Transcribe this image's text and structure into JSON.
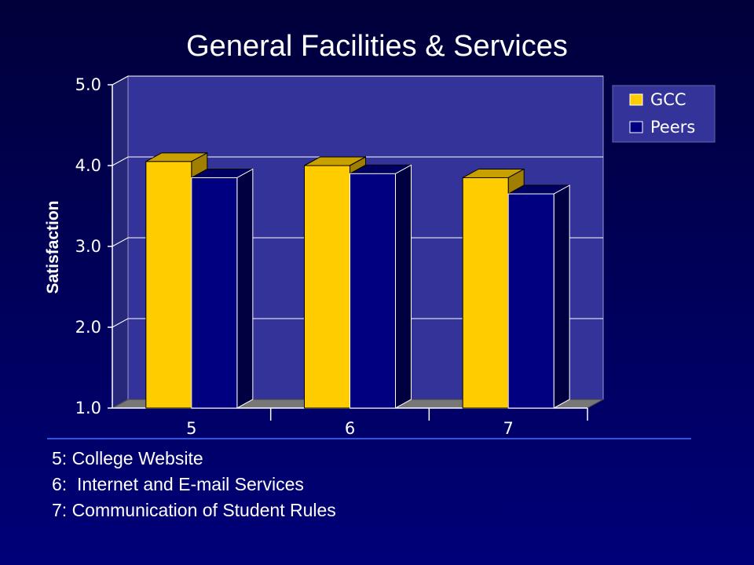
{
  "slide": {
    "title": "General Facilities & Services",
    "notes": [
      "5: College Website",
      "6:  Internet and E-mail Services",
      "7: Communication of Student Rules"
    ]
  },
  "colors": {
    "background": "#000066",
    "plot_area": "#333399",
    "gcc": "#ffcc00",
    "peers": "#000080",
    "gridline": "#ffffff"
  },
  "chart_data": {
    "type": "bar",
    "title": "",
    "xlabel": "",
    "ylabel": "Satisfaction",
    "categories": [
      "5",
      "6",
      "7"
    ],
    "series": [
      {
        "name": "GCC",
        "values": [
          4.05,
          4.0,
          3.85
        ]
      },
      {
        "name": "Peers",
        "values": [
          3.85,
          3.9,
          3.65
        ]
      }
    ],
    "ylim": [
      1.0,
      5.0
    ],
    "yticks": [
      "1.0",
      "2.0",
      "3.0",
      "4.0",
      "5.0"
    ],
    "grid": true,
    "legend_position": "top-right",
    "style": "3d-clustered"
  }
}
